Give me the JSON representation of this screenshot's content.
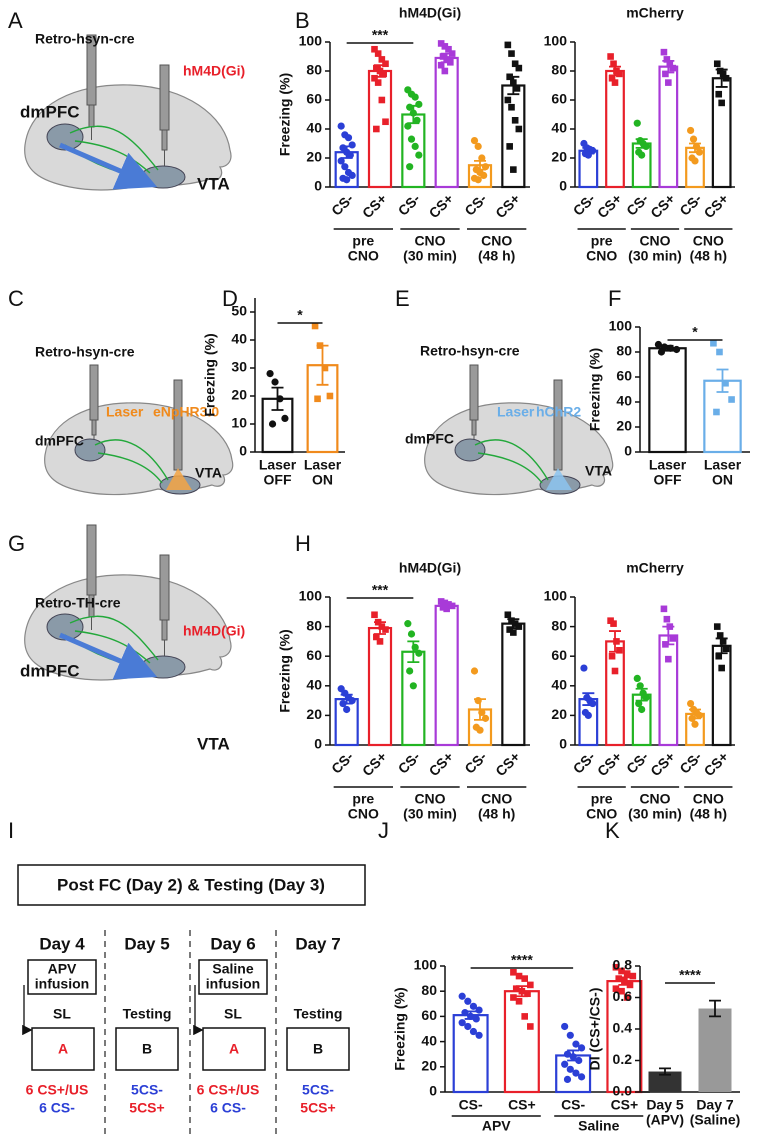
{
  "panels": [
    "A",
    "B",
    "C",
    "D",
    "E",
    "F",
    "G",
    "H",
    "I",
    "J",
    "K"
  ],
  "diagrams": {
    "A": {
      "vector": "Retro-hsyn-cre",
      "receptor": "hM4D(Gi)",
      "source": "dmPFC",
      "target": "VTA"
    },
    "C": {
      "vector": "Retro-hsyn-cre",
      "laser": "Laser",
      "opsin": "eNpHR3.0",
      "source": "dmPFC",
      "target": "VTA"
    },
    "E": {
      "vector": "Retro-hsyn-cre",
      "laser": "Laser",
      "opsin": "hChR2",
      "source": "dmPFC",
      "target": "VTA"
    },
    "G": {
      "vector": "Retro-TH-cre",
      "receptor": "hM4D(Gi)",
      "source": "dmPFC",
      "target": "VTA"
    },
    "I": {
      "title": "Post FC (Day 2) & Testing (Day 3)",
      "days": [
        {
          "day": "Day 4",
          "infusion": [
            "APV",
            "infusion"
          ],
          "step": "SL",
          "context": "A",
          "protocol": [
            "6 CS+/US",
            "6 CS-"
          ]
        },
        {
          "day": "Day 5",
          "step": "Testing",
          "context": "B",
          "protocol": [
            "5CS-",
            "5CS+"
          ]
        },
        {
          "day": "Day 6",
          "infusion": [
            "Saline",
            "infusion"
          ],
          "step": "SL",
          "context": "A",
          "protocol": [
            "6 CS+/US",
            "6 CS-"
          ]
        },
        {
          "day": "Day 7",
          "step": "Testing",
          "context": "B",
          "protocol": [
            "5CS-",
            "5CS+"
          ]
        }
      ]
    }
  },
  "chart_data": [
    {
      "type": "bar",
      "title": "hM4D(Gi)",
      "ylabel": "Freezing (%)",
      "filled": false,
      "categories": [
        "CS-",
        "CS+",
        "CS-",
        "CS+",
        "CS-",
        "CS+"
      ],
      "groups": [
        [
          "pre",
          "CNO"
        ],
        [
          "CNO",
          "(30 min)"
        ],
        [
          "CNO",
          "(48 h)"
        ]
      ],
      "values": [
        24,
        80,
        50,
        89,
        15,
        70
      ],
      "errors": [
        4,
        4,
        6,
        3,
        3,
        6
      ],
      "colors": [
        "#2b3fd6",
        "#e8202a",
        "#22b422",
        "#a83ad8",
        "#f39a1e",
        "#111111"
      ],
      "points": [
        [
          42,
          36,
          34,
          29,
          27,
          24,
          22,
          18,
          14,
          10,
          8,
          6,
          5
        ],
        [
          95,
          92,
          88,
          85,
          82,
          80,
          78,
          75,
          72,
          60,
          45,
          40
        ],
        [
          67,
          64,
          62,
          57,
          55,
          51,
          46,
          42,
          33,
          28,
          22,
          14
        ],
        [
          99,
          97,
          95,
          92,
          90,
          88,
          86,
          84,
          80
        ],
        [
          32,
          28,
          20,
          14,
          12,
          10,
          8,
          6,
          5
        ],
        [
          98,
          92,
          85,
          82,
          76,
          72,
          68,
          60,
          55,
          46,
          40,
          28,
          12
        ]
      ],
      "ylim": [
        0,
        100
      ],
      "yticks": [
        0,
        20,
        40,
        60,
        80,
        100
      ],
      "significance": "***"
    },
    {
      "type": "bar",
      "title": "mCherry",
      "filled": false,
      "categories": [
        "CS-",
        "CS+",
        "CS-",
        "CS+",
        "CS-",
        "CS+"
      ],
      "groups": [
        [
          "pre",
          "CNO"
        ],
        [
          "CNO",
          "(30 min)"
        ],
        [
          "CNO",
          "(48 h)"
        ]
      ],
      "values": [
        25,
        80,
        30,
        83,
        27,
        75
      ],
      "errors": [
        2,
        3,
        3,
        4,
        3,
        6
      ],
      "colors": [
        "#2b3fd6",
        "#e8202a",
        "#22b422",
        "#a83ad8",
        "#f39a1e",
        "#111111"
      ],
      "points": [
        [
          30,
          27,
          26,
          25,
          23,
          22
        ],
        [
          90,
          85,
          80,
          78,
          75,
          72
        ],
        [
          44,
          32,
          30,
          28,
          24,
          22
        ],
        [
          93,
          88,
          85,
          82,
          78,
          72
        ],
        [
          39,
          33,
          28,
          24,
          20,
          18
        ],
        [
          85,
          80,
          78,
          75,
          64,
          58
        ]
      ],
      "ylim": [
        0,
        100
      ],
      "yticks": [
        0,
        20,
        40,
        60,
        80,
        100
      ]
    },
    {
      "type": "bar",
      "ylabel": "Freezing (%)",
      "filled": false,
      "categories": [
        [
          "Laser",
          "OFF"
        ],
        [
          "Laser",
          "ON"
        ]
      ],
      "values": [
        19,
        31
      ],
      "errors": [
        4,
        7
      ],
      "colors": [
        "#111111",
        "#f08a1c"
      ],
      "points": [
        [
          28,
          25,
          19,
          12,
          10
        ],
        [
          45,
          38,
          30,
          20,
          19
        ]
      ],
      "ylim": [
        0,
        55
      ],
      "yticks": [
        0,
        10,
        20,
        30,
        40,
        50
      ],
      "significance": "*"
    },
    {
      "type": "bar",
      "ylabel": "Freezing (%)",
      "filled": false,
      "categories": [
        [
          "Laser",
          "OFF"
        ],
        [
          "Laser",
          "ON"
        ]
      ],
      "values": [
        83,
        57
      ],
      "errors": [
        2,
        9
      ],
      "colors": [
        "#111111",
        "#6aaee8"
      ],
      "points": [
        [
          86,
          84,
          83,
          82,
          80
        ],
        [
          87,
          80,
          55,
          42,
          32
        ]
      ],
      "ylim": [
        0,
        100
      ],
      "yticks": [
        0,
        20,
        40,
        60,
        80,
        100
      ],
      "significance": "*"
    },
    {
      "type": "bar",
      "title": "hM4D(Gi)",
      "ylabel": "Freezing (%)",
      "filled": false,
      "categories": [
        "CS-",
        "CS+",
        "CS-",
        "CS+",
        "CS-",
        "CS+"
      ],
      "groups": [
        [
          "pre",
          "CNO"
        ],
        [
          "CNO",
          "(30 min)"
        ],
        [
          "CNO",
          "(48 h)"
        ]
      ],
      "values": [
        31,
        79,
        63,
        94,
        24,
        82
      ],
      "errors": [
        3,
        4,
        7,
        1,
        7,
        3
      ],
      "colors": [
        "#2b3fd6",
        "#e8202a",
        "#22b422",
        "#a83ad8",
        "#f39a1e",
        "#111111"
      ],
      "points": [
        [
          38,
          35,
          32,
          30,
          28,
          24
        ],
        [
          88,
          83,
          80,
          78,
          73,
          70
        ],
        [
          82,
          75,
          66,
          62,
          50,
          40
        ],
        [
          97,
          96,
          95,
          94,
          93,
          92
        ],
        [
          50,
          30,
          22,
          18,
          12,
          10
        ],
        [
          88,
          84,
          82,
          80,
          78,
          76
        ]
      ],
      "ylim": [
        0,
        100
      ],
      "yticks": [
        0,
        20,
        40,
        60,
        80,
        100
      ],
      "significance": "***"
    },
    {
      "type": "bar",
      "title": "mCherry",
      "filled": false,
      "categories": [
        "CS-",
        "CS+",
        "CS-",
        "CS+",
        "CS-",
        "CS+"
      ],
      "groups": [
        [
          "pre",
          "CNO"
        ],
        [
          "CNO",
          "(30 min)"
        ],
        [
          "CNO",
          "(48 h)"
        ]
      ],
      "values": [
        31,
        70,
        34,
        74,
        21,
        67
      ],
      "errors": [
        4,
        7,
        4,
        6,
        3,
        5
      ],
      "colors": [
        "#2b3fd6",
        "#e8202a",
        "#22b422",
        "#a83ad8",
        "#f39a1e",
        "#111111"
      ],
      "points": [
        [
          52,
          32,
          30,
          28,
          22,
          20
        ],
        [
          84,
          82,
          70,
          64,
          60,
          50
        ],
        [
          45,
          40,
          35,
          32,
          28,
          24
        ],
        [
          92,
          85,
          80,
          72,
          68,
          58
        ],
        [
          28,
          24,
          22,
          20,
          18,
          14
        ],
        [
          80,
          74,
          70,
          65,
          60,
          52
        ]
      ],
      "ylim": [
        0,
        100
      ],
      "yticks": [
        0,
        20,
        40,
        60,
        80,
        100
      ]
    },
    {
      "type": "bar",
      "ylabel": "Freezing (%)",
      "filled": false,
      "categories": [
        "CS-",
        "CS+",
        "CS-",
        "CS+"
      ],
      "groups": [
        [
          "APV"
        ],
        [
          "Saline"
        ]
      ],
      "values": [
        61,
        80,
        29,
        88
      ],
      "errors": [
        3,
        4,
        4,
        3
      ],
      "colors": [
        "#2b3fd6",
        "#e8202a",
        "#2b3fd6",
        "#e8202a"
      ],
      "points": [
        [
          76,
          72,
          68,
          65,
          63,
          60,
          58,
          55,
          52,
          48,
          45
        ],
        [
          95,
          92,
          90,
          85,
          82,
          80,
          78,
          75,
          72,
          60,
          52
        ],
        [
          52,
          45,
          38,
          35,
          30,
          28,
          25,
          22,
          18,
          15,
          12,
          10
        ],
        [
          99,
          96,
          94,
          92,
          90,
          88,
          85,
          82,
          80,
          75
        ]
      ],
      "ylim": [
        0,
        100
      ],
      "yticks": [
        0,
        20,
        40,
        60,
        80,
        100
      ],
      "significance": "****"
    },
    {
      "type": "bar",
      "ylabel": "DI (CS+/CS-)",
      "filled": true,
      "categories": [
        [
          "Day 5",
          "(APV)"
        ],
        [
          "Day 7",
          "(Saline)"
        ]
      ],
      "values": [
        0.13,
        0.53
      ],
      "errors": [
        0.02,
        0.05
      ],
      "colors": [
        "#333333",
        "#999999"
      ],
      "ylim": [
        0,
        0.8
      ],
      "yticks": [
        {
          "value": 0,
          "label": "0.0"
        },
        0.2,
        0.4,
        0.6,
        0.8
      ],
      "significance": "****"
    }
  ]
}
